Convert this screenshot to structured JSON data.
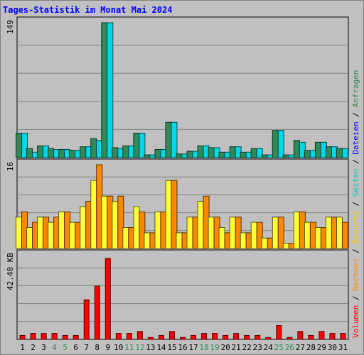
{
  "chart_data": {
    "type": "bar",
    "title": "Tages-Statistik im Monat Mai 2024",
    "categories": [
      "1",
      "2",
      "3",
      "4",
      "5",
      "6",
      "7",
      "8",
      "9",
      "10",
      "11",
      "12",
      "13",
      "14",
      "15",
      "16",
      "17",
      "18",
      "19",
      "20",
      "21",
      "22",
      "23",
      "24",
      "25",
      "26",
      "27",
      "28",
      "29",
      "30",
      "31"
    ],
    "weekend_categories": [
      "4",
      "5",
      "11",
      "12",
      "18",
      "19",
      "25",
      "26"
    ],
    "legend": [
      {
        "text": "Anfragen",
        "color": "#2e8b57"
      },
      {
        "text": "Dateien",
        "color": "#0000ff"
      },
      {
        "text": "Seiten",
        "color": "#00cccc"
      },
      {
        "text": "Besuche",
        "color": "#ffcc00"
      },
      {
        "text": "Rechner",
        "color": "#ff8800"
      },
      {
        "text": "Volumen",
        "color": "#ff0000"
      }
    ],
    "legend_separator": "/",
    "panels": [
      {
        "id": "hits",
        "ymax_label": "149",
        "ymax": 149,
        "series": [
          {
            "name": "Anfragen",
            "color": "#2e8b57",
            "values": [
              27,
              10,
              13,
              10,
              9,
              8,
              12,
              21,
              149,
              11,
              13,
              27,
              3,
              9,
              39,
              4,
              7,
              13,
              11,
              6,
              12,
              6,
              10,
              3,
              30,
              3,
              19,
              8,
              17,
              12,
              10
            ]
          },
          {
            "name": "Dateien",
            "color": "#00d8e8",
            "values": [
              27,
              6,
              13,
              9,
              9,
              8,
              12,
              19,
              149,
              10,
              13,
              27,
              3,
              9,
              39,
              4,
              7,
              13,
              11,
              6,
              12,
              6,
              10,
              3,
              30,
              3,
              17,
              8,
              17,
              12,
              10
            ]
          }
        ]
      },
      {
        "id": "visits",
        "ymax_label": "16",
        "ymax": 16,
        "series": [
          {
            "name": "Besuche",
            "color": "#ffff33",
            "values": [
              6,
              4,
              6,
              5,
              7,
              5,
              8,
              13,
              10,
              9,
              4,
              8,
              3,
              7,
              13,
              3,
              6,
              9,
              6,
              4,
              6,
              3,
              5,
              2,
              6,
              1,
              7,
              5,
              4,
              6,
              6
            ]
          },
          {
            "name": "Rechner",
            "color": "#ff8800",
            "values": [
              7,
              5,
              6,
              6,
              7,
              5,
              9,
              16,
              10,
              10,
              4,
              7,
              3,
              7,
              13,
              3,
              6,
              10,
              6,
              3,
              6,
              3,
              5,
              2,
              6,
              1,
              7,
              5,
              4,
              6,
              5
            ]
          }
        ]
      },
      {
        "id": "volume",
        "ymax_label": "42.40 KB",
        "ymax": 42.4,
        "series": [
          {
            "name": "Volumen",
            "color": "#ff0000",
            "values": [
              2,
              3,
              3,
              3,
              2,
              2,
              20,
              27,
              41,
              3,
              3,
              4,
              1,
              2,
              4,
              1,
              2,
              3,
              3,
              2,
              3,
              2,
              2,
              1,
              7,
              1,
              4,
              2,
              4,
              3,
              3
            ]
          }
        ]
      }
    ]
  }
}
